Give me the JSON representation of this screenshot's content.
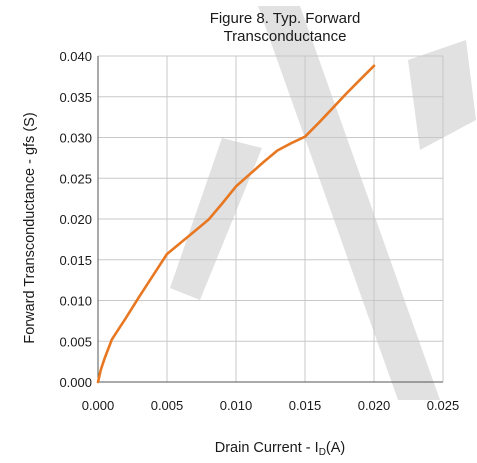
{
  "chart_data": {
    "type": "line",
    "title": [
      "Figure 8. Typ. Forward",
      "Transconductance"
    ],
    "xlabel": {
      "prefix": "Drain Current -  I",
      "sub": "D",
      "suffix": "(A)"
    },
    "ylabel": "Forward Transconductance - gfs (S)",
    "xlim": [
      0,
      0.025
    ],
    "ylim": [
      0,
      0.04
    ],
    "x_ticks": [
      "0.000",
      "0.005",
      "0.010",
      "0.015",
      "0.020",
      "0.025"
    ],
    "y_ticks": [
      "0.000",
      "0.005",
      "0.010",
      "0.015",
      "0.020",
      "0.025",
      "0.030",
      "0.035",
      "0.040"
    ],
    "grid": true,
    "series": [
      {
        "color": "#e87722",
        "x": [
          0,
          0.0002,
          0.0005,
          0.001,
          0.002,
          0.003,
          0.004,
          0.005,
          0.006,
          0.007,
          0.008,
          0.009,
          0.01,
          0.011,
          0.012,
          0.013,
          0.014,
          0.015,
          0.016,
          0.017,
          0.018,
          0.019,
          0.02
        ],
        "y": [
          0,
          0.0015,
          0.003,
          0.0052,
          0.0078,
          0.0105,
          0.0131,
          0.0157,
          0.0171,
          0.0185,
          0.0199,
          0.0219,
          0.024,
          0.0255,
          0.027,
          0.0284,
          0.0293,
          0.0301,
          0.0318,
          0.0336,
          0.0354,
          0.0371,
          0.0388
        ]
      }
    ]
  },
  "watermark_color": "#d7d7d7"
}
